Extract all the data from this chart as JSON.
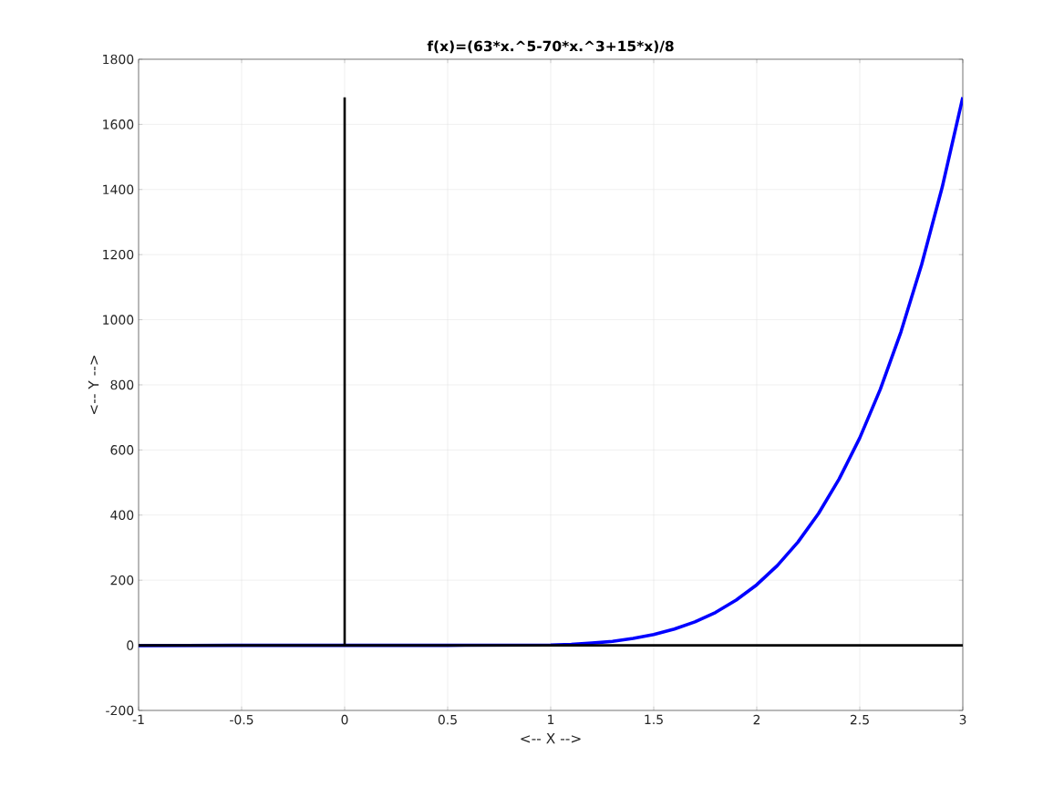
{
  "chart_data": {
    "type": "line",
    "title": "f(x)=(63*x.^5-70*x.^3+15*x)/8",
    "xlabel": "<-- X -->",
    "ylabel": "<-- Y -->",
    "xlim": [
      -1,
      3
    ],
    "ylim": [
      -200,
      1800
    ],
    "xticks": [
      -1,
      -0.5,
      0,
      0.5,
      1,
      1.5,
      2,
      2.5,
      3
    ],
    "yticks": [
      -200,
      0,
      200,
      400,
      600,
      800,
      1000,
      1200,
      1400,
      1600,
      1800
    ],
    "grid": true,
    "marker": "none",
    "line_style": "solid",
    "series": [
      {
        "color": "#0000ff",
        "x": [
          -1,
          -0.5,
          0,
          0.5,
          1,
          1.1,
          1.2,
          1.3,
          1.4,
          1.5,
          1.6,
          1.7,
          1.8,
          1.9,
          2,
          2.1,
          2.2,
          2.3,
          2.4,
          2.5,
          2.6,
          2.7,
          2.8,
          2.9,
          3
        ],
        "values": [
          -1,
          0,
          0,
          0,
          1,
          3,
          7,
          12,
          21,
          33,
          50,
          72,
          101,
          139,
          186,
          245,
          317,
          405,
          511,
          637,
          787,
          963,
          1169,
          1407,
          1683
        ]
      },
      {
        "color": "#000000",
        "x": [
          -1,
          3
        ],
        "values": [
          0,
          0
        ]
      },
      {
        "color": "#000000",
        "x": [
          0,
          0
        ],
        "values": [
          0,
          1683
        ]
      }
    ]
  }
}
